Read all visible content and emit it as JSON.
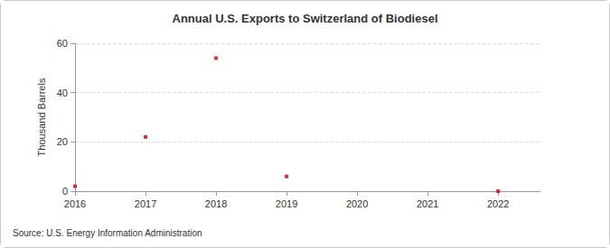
{
  "chart_data": {
    "type": "scatter",
    "title": "Annual U.S. Exports to Switzerland of Biodiesel",
    "x": [
      2016,
      2017,
      2018,
      2019,
      2020,
      2021,
      2022
    ],
    "values": [
      2,
      22,
      54,
      6,
      null,
      null,
      0
    ],
    "color": "#cc0000",
    "marker": "square",
    "xlim": [
      2016,
      2022.6
    ],
    "xticks": [
      2016,
      2017,
      2018,
      2019,
      2020,
      2021,
      2022
    ],
    "ylabel": "Thousand Barrels",
    "ylim": [
      0,
      60
    ],
    "yticks": [
      0,
      20,
      40,
      60
    ],
    "grid": true,
    "source": "Source: U.S. Energy Information Administration"
  }
}
